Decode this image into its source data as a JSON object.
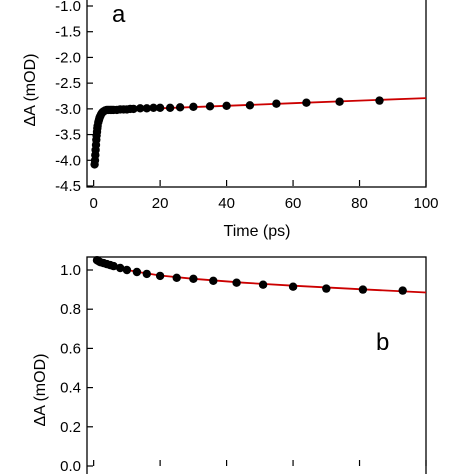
{
  "chart_data": [
    {
      "type": "scatter",
      "panel_label": "a",
      "title": "",
      "xlabel": "Time (ps)",
      "ylabel": "ΔA (mOD)",
      "xlim": [
        -2,
        100
      ],
      "ylim": [
        -4.5,
        -0.5
      ],
      "xticks": [
        "0",
        "20",
        "40",
        "60",
        "80",
        "100"
      ],
      "yticks": [
        "-1.0",
        "-1.5",
        "-2.0",
        "-2.5",
        "-3.0",
        "-3.5",
        "-4.0",
        "-4.5"
      ],
      "grid": false,
      "series": [
        {
          "kind": "markers",
          "color": "#000000",
          "x": [
            0.3,
            0.4,
            0.5,
            0.6,
            0.7,
            0.8,
            0.9,
            1.0,
            1.1,
            1.2,
            1.4,
            1.6,
            1.8,
            2.0,
            2.3,
            2.6,
            3.0,
            3.5,
            4.0,
            4.5,
            5.0,
            5.5,
            6.0,
            7.0,
            8.0,
            9.0,
            10.0,
            11.0,
            12.0,
            14.0,
            16.0,
            18.0,
            20.0,
            23.0,
            26.0,
            30.0,
            35.0,
            40.0,
            47.0,
            55.0,
            64.0,
            74.0,
            86.0
          ],
          "y": [
            -4.08,
            -4.0,
            -3.9,
            -3.8,
            -3.7,
            -3.6,
            -3.52,
            -3.45,
            -3.38,
            -3.33,
            -3.26,
            -3.21,
            -3.17,
            -3.14,
            -3.1,
            -3.07,
            -3.05,
            -3.03,
            -3.02,
            -3.02,
            -3.02,
            -3.02,
            -3.02,
            -3.02,
            -3.01,
            -3.01,
            -3.01,
            -3.0,
            -3.0,
            -2.99,
            -2.99,
            -2.98,
            -2.98,
            -2.98,
            -2.97,
            -2.96,
            -2.95,
            -2.94,
            -2.93,
            -2.9,
            -2.88,
            -2.86,
            -2.84
          ]
        },
        {
          "kind": "fit-line",
          "color": "#cc0000",
          "x": [
            0.3,
            0.6,
            1.0,
            1.5,
            2.0,
            2.5,
            3.0,
            4.0,
            5.0,
            7.0,
            10.0,
            20.0,
            40.0,
            60.0,
            80.0,
            100.0
          ],
          "y": [
            -4.08,
            -3.75,
            -3.42,
            -3.22,
            -3.12,
            -3.07,
            -3.04,
            -3.03,
            -3.03,
            -3.02,
            -3.01,
            -2.99,
            -2.94,
            -2.89,
            -2.84,
            -2.79
          ]
        }
      ]
    },
    {
      "type": "scatter",
      "panel_label": "b",
      "title": "",
      "xlabel": "",
      "ylabel": "ΔA (mOD)",
      "xlim": [
        -2,
        100
      ],
      "ylim": [
        0.0,
        1.1
      ],
      "xticks": [],
      "yticks": [
        "0.0",
        "0.2",
        "0.4",
        "0.6",
        "0.8",
        "1.0"
      ],
      "grid": false,
      "series": [
        {
          "kind": "markers",
          "color": "#000000",
          "x": [
            1.0,
            1.5,
            2.0,
            3.0,
            4.0,
            5.0,
            6.0,
            8.0,
            10.0,
            13.0,
            16.0,
            20.0,
            25.0,
            30.0,
            36.0,
            43.0,
            51.0,
            60.0,
            70.0,
            81.0,
            93.0
          ],
          "y": [
            1.05,
            1.045,
            1.04,
            1.035,
            1.03,
            1.025,
            1.02,
            1.01,
            1.0,
            0.99,
            0.98,
            0.97,
            0.96,
            0.955,
            0.945,
            0.935,
            0.925,
            0.915,
            0.905,
            0.9,
            0.895
          ]
        },
        {
          "kind": "fit-line",
          "color": "#cc0000",
          "x": [
            1.0,
            2.0,
            4.0,
            6.0,
            10.0,
            15.0,
            20.0,
            30.0,
            45.0,
            60.0,
            80.0,
            100.0
          ],
          "y": [
            1.05,
            1.04,
            1.025,
            1.015,
            1.0,
            0.985,
            0.972,
            0.955,
            0.935,
            0.92,
            0.902,
            0.885
          ]
        }
      ]
    }
  ]
}
